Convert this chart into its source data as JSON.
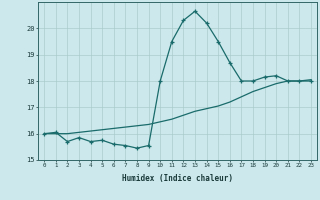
{
  "xlabel": "Humidex (Indice chaleur)",
  "ylabel": "",
  "bg_color": "#cce8ec",
  "grid_color": "#aacccc",
  "line_color": "#1a6b6b",
  "x_data": [
    0,
    1,
    2,
    3,
    4,
    5,
    6,
    7,
    8,
    9,
    10,
    11,
    12,
    13,
    14,
    15,
    16,
    17,
    18,
    19,
    20,
    21,
    22,
    23
  ],
  "line1_y": [
    16.0,
    16.05,
    15.7,
    15.85,
    15.7,
    15.75,
    15.6,
    15.55,
    15.45,
    15.55,
    18.0,
    19.5,
    20.3,
    20.65,
    20.2,
    19.5,
    18.7,
    18.0,
    18.0,
    18.15,
    18.2,
    18.0,
    18.0,
    18.0
  ],
  "line2_y": [
    16.0,
    16.0,
    16.0,
    16.05,
    16.1,
    16.15,
    16.2,
    16.25,
    16.3,
    16.35,
    16.45,
    16.55,
    16.7,
    16.85,
    16.95,
    17.05,
    17.2,
    17.4,
    17.6,
    17.75,
    17.9,
    18.0,
    18.0,
    18.05
  ],
  "ylim": [
    15.0,
    21.0
  ],
  "xlim": [
    -0.5,
    23.5
  ],
  "yticks": [
    15,
    16,
    17,
    18,
    19,
    20
  ],
  "xticks": [
    0,
    1,
    2,
    3,
    4,
    5,
    6,
    7,
    8,
    9,
    10,
    11,
    12,
    13,
    14,
    15,
    16,
    17,
    18,
    19,
    20,
    21,
    22,
    23
  ]
}
